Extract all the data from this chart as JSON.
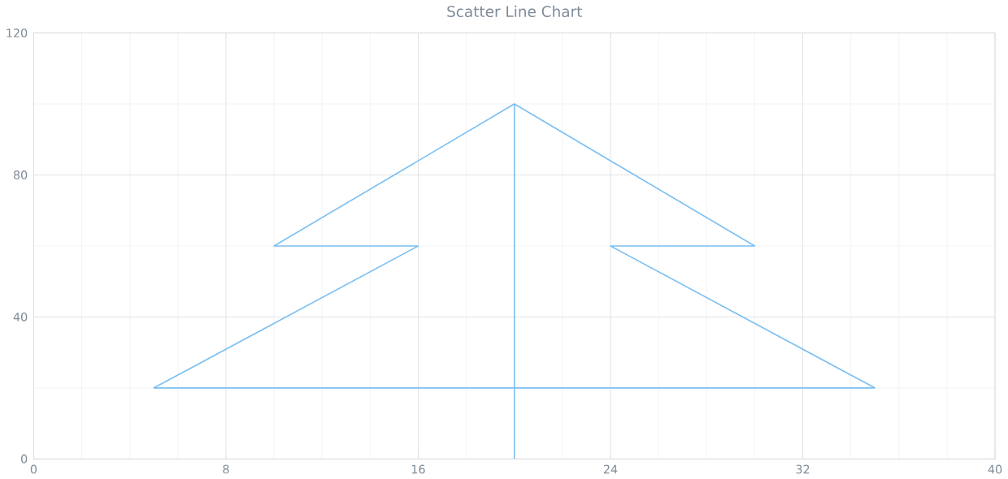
{
  "chart_data": {
    "type": "line",
    "title": "Scatter Line Chart",
    "series": [
      {
        "color": "#7cc0f2",
        "x": [
          20,
          20,
          10,
          16,
          5,
          35,
          24,
          30,
          20
        ],
        "values": [
          0,
          100,
          60,
          60,
          20,
          20,
          60,
          60,
          100
        ]
      }
    ],
    "xlim": [
      0,
      40
    ],
    "xticks": [
      0,
      8,
      16,
      24,
      32,
      40
    ],
    "ylim": [
      0,
      120
    ],
    "yticks": [
      0,
      40,
      80,
      120
    ],
    "grid": true,
    "marker": "none",
    "line_style": "solid"
  }
}
